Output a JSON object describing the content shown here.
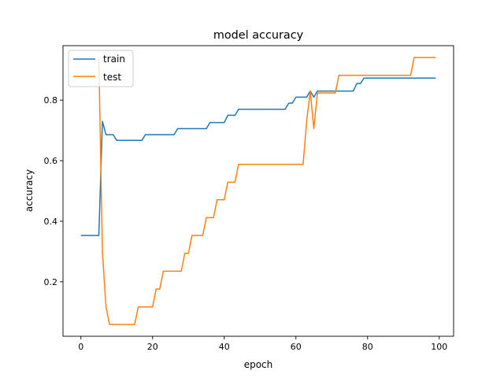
{
  "chart_data": {
    "type": "line",
    "title": "model accuracy",
    "xlabel": "epoch",
    "ylabel": "accuracy",
    "xlim": [
      -5,
      104
    ],
    "ylim": [
      0.02,
      0.98
    ],
    "xticks": [
      0,
      20,
      40,
      60,
      80,
      100
    ],
    "yticks": [
      0.2,
      0.4,
      0.6,
      0.8
    ],
    "xtick_labels": [
      "0",
      "20",
      "40",
      "60",
      "80",
      "100"
    ],
    "ytick_labels": [
      "0.2",
      "0.4",
      "0.6",
      "0.8"
    ],
    "grid": false,
    "legend_position": "top-left",
    "series": [
      {
        "name": "train",
        "color": "#1f77b4",
        "x": [
          0,
          5,
          6,
          7,
          9,
          10,
          17,
          18,
          26,
          27,
          35,
          36,
          40,
          41,
          43,
          44,
          57,
          58,
          59,
          60,
          63,
          64,
          65,
          66,
          76,
          77,
          78,
          79,
          99
        ],
        "y": [
          0.353,
          0.353,
          0.73,
          0.686,
          0.686,
          0.667,
          0.667,
          0.686,
          0.686,
          0.706,
          0.706,
          0.726,
          0.726,
          0.75,
          0.75,
          0.77,
          0.77,
          0.79,
          0.79,
          0.81,
          0.81,
          0.83,
          0.81,
          0.83,
          0.83,
          0.855,
          0.855,
          0.873,
          0.873
        ]
      },
      {
        "name": "test",
        "color": "#ff7f0e",
        "x": [
          5,
          6,
          7,
          8,
          15,
          16,
          20,
          21,
          22,
          23,
          28,
          29,
          30,
          31,
          34,
          35,
          37,
          38,
          40,
          41,
          43,
          44,
          62,
          63,
          64,
          65,
          66,
          71,
          72,
          92,
          93,
          99
        ],
        "y": [
          0.94,
          0.3,
          0.117,
          0.059,
          0.059,
          0.117,
          0.117,
          0.176,
          0.176,
          0.235,
          0.235,
          0.294,
          0.294,
          0.353,
          0.353,
          0.412,
          0.412,
          0.471,
          0.471,
          0.529,
          0.529,
          0.588,
          0.588,
          0.73,
          0.83,
          0.706,
          0.824,
          0.824,
          0.882,
          0.882,
          0.941,
          0.941
        ]
      }
    ]
  }
}
